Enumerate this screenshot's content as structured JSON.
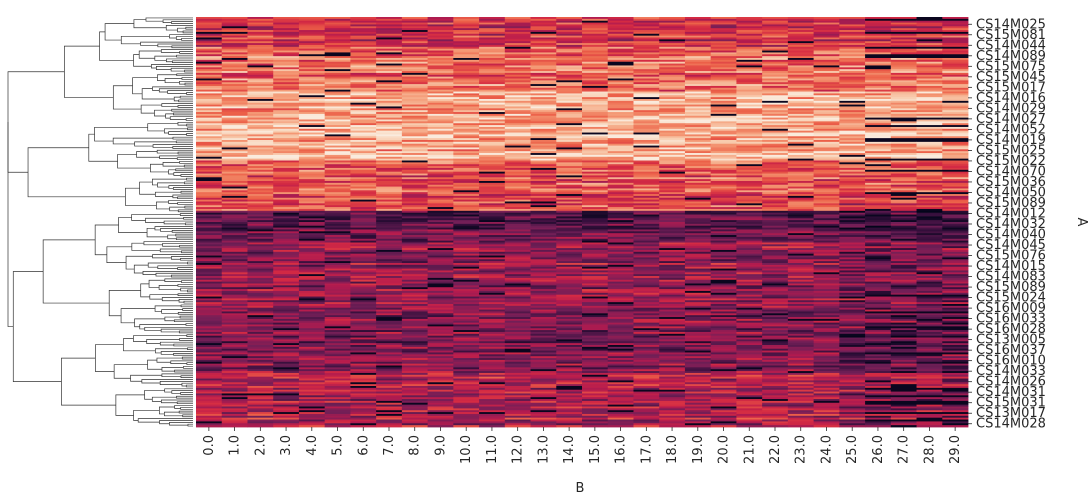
{
  "chart_data": {
    "type": "heatmap",
    "title": "",
    "xlabel": "B",
    "ylabel": "A",
    "x_tick_labels": [
      "0.0",
      "1.0",
      "2.0",
      "3.0",
      "4.0",
      "5.0",
      "6.0",
      "7.0",
      "8.0",
      "9.0",
      "10.0",
      "11.0",
      "12.0",
      "13.0",
      "14.0",
      "15.0",
      "16.0",
      "17.0",
      "18.0",
      "19.0",
      "20.0",
      "21.0",
      "22.0",
      "23.0",
      "24.0",
      "25.0",
      "26.0",
      "27.0",
      "28.0",
      "29.0"
    ],
    "y_tick_labels": [
      "CS14M025",
      "CS15M081",
      "CS14M044",
      "CS14M089",
      "CS15M075",
      "CS15M045",
      "CS15M017",
      "CS14M016",
      "CS14M029",
      "CS14M027",
      "CS14M052",
      "CS14M019",
      "CS15M025",
      "CS15M022",
      "CS14M070",
      "CS15M036",
      "CS14M050",
      "CS15M089",
      "CS14M012",
      "CS14M032",
      "CS14M040",
      "CS14M045",
      "CS15M076",
      "CS14M015",
      "CS14M083",
      "CS15M089",
      "CS15M024",
      "CS16M009",
      "CS16M033",
      "CS16M028",
      "CS13M005",
      "CS16M037",
      "CS16M010",
      "CS14M033",
      "CS14M026",
      "CS14M031",
      "CS15M031",
      "CS13M017",
      "CS14M028"
    ],
    "n_rows": 220,
    "n_cols": 30,
    "colormap": "rocket",
    "dendrogram": "rows, left side",
    "colors": {
      "low": "#03051a",
      "mid": "#cb1b4f",
      "high": "#faebdd"
    }
  }
}
